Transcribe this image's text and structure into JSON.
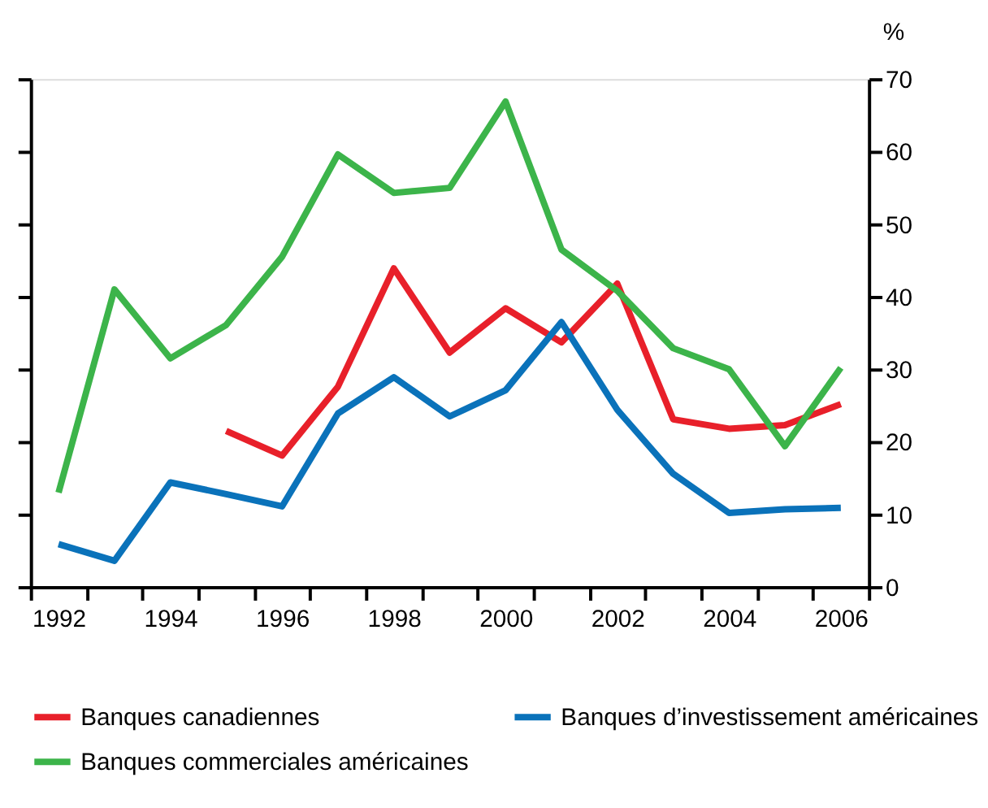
{
  "chart_data": {
    "type": "line",
    "ylabel": "%",
    "categories": [
      "1992",
      null,
      "1994",
      null,
      "1996",
      null,
      "1998",
      null,
      "2000",
      null,
      "2002",
      null,
      "2004",
      null,
      "2006"
    ],
    "series": [
      {
        "name": "Banques canadiennes",
        "color": "#e8202a",
        "values": [
          null,
          null,
          null,
          21.5,
          18.1,
          27.6,
          43.9,
          32.3,
          38.4,
          33.7,
          41.8,
          23.1,
          21.8,
          22.3,
          25.2
        ]
      },
      {
        "name": "Banques d’investissement américaines",
        "color": "#0a72ba",
        "values": [
          5.9,
          3.6,
          14.4,
          12.8,
          11.1,
          23.9,
          28.9,
          23.5,
          27.1,
          36.5,
          24.4,
          15.6,
          10.2,
          10.7,
          10.9
        ]
      },
      {
        "name": "Banques commerciales américaines",
        "color": "#3cb44a",
        "values": [
          13.0,
          41.0,
          31.5,
          36.1,
          45.5,
          59.6,
          54.3,
          55.0,
          66.9,
          46.5,
          40.8,
          32.9,
          30.0,
          19.4,
          30.2
        ]
      }
    ],
    "ylim": [
      0,
      70
    ],
    "yticks": [
      0,
      10,
      20,
      30,
      40,
      50,
      60,
      70
    ],
    "grid": false,
    "legend": "bottom",
    "line_style": "solid",
    "marker": "none"
  }
}
